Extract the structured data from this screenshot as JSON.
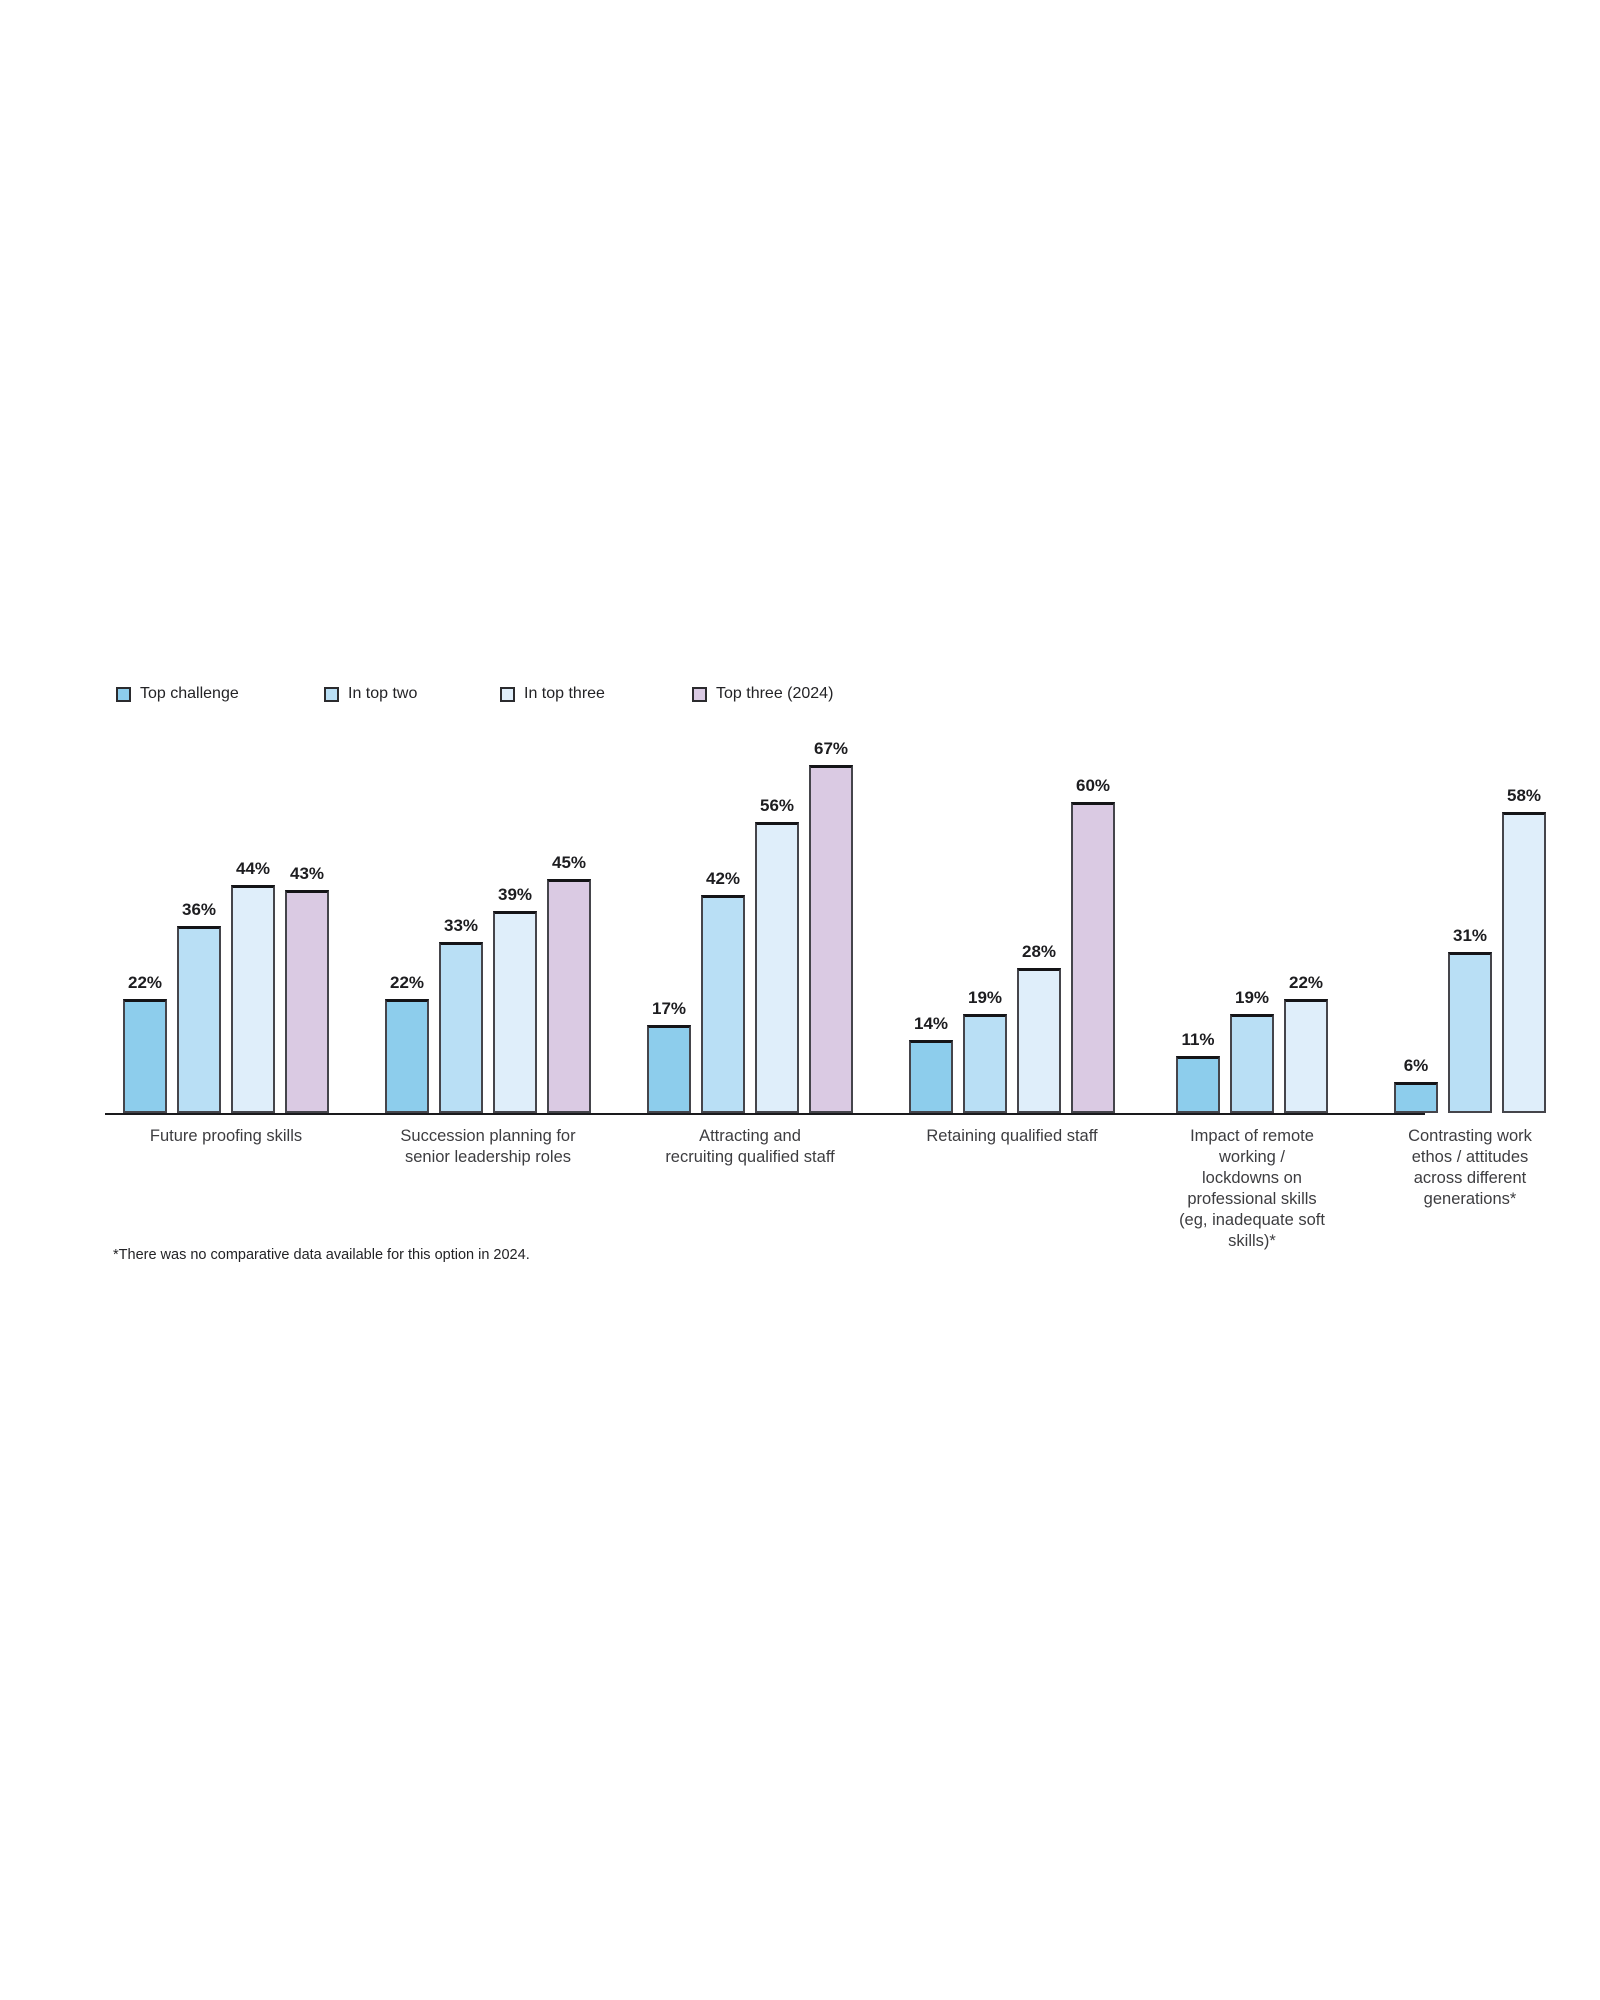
{
  "chart_data": {
    "type": "bar",
    "title": "",
    "xlabel": "",
    "ylabel": "",
    "ylim": [
      0,
      70
    ],
    "grid": false,
    "legend_position": "top-left",
    "value_suffix": "%",
    "series": [
      {
        "name": "Top challenge",
        "color": "#8DCDEC"
      },
      {
        "name": "In top two",
        "color": "#B9DFF5"
      },
      {
        "name": "In top three",
        "color": "#DFEEFA"
      },
      {
        "name": "Top three (2024)",
        "color": "#DACAE3"
      }
    ],
    "groups": [
      {
        "category": "Future proofing skills",
        "values": [
          22,
          36,
          44,
          43
        ]
      },
      {
        "category": "Succession planning for\nsenior leadership roles",
        "values": [
          22,
          33,
          39,
          45
        ]
      },
      {
        "category": "Attracting and\nrecruiting qualified staff",
        "values": [
          17,
          42,
          56,
          67
        ]
      },
      {
        "category": "Retaining qualified staff",
        "values": [
          14,
          19,
          28,
          60
        ]
      },
      {
        "category": "Impact of remote\nworking /\nlockdowns on\nprofessional skills\n(eg, inadequate soft\nskills)*",
        "values": [
          11,
          19,
          22
        ]
      },
      {
        "category": "Contrasting work\nethos / attitudes\nacross different\ngenerations*",
        "values": [
          6,
          31,
          58
        ]
      }
    ]
  },
  "footnote": "*There was no comparative data available for this option in 2024."
}
